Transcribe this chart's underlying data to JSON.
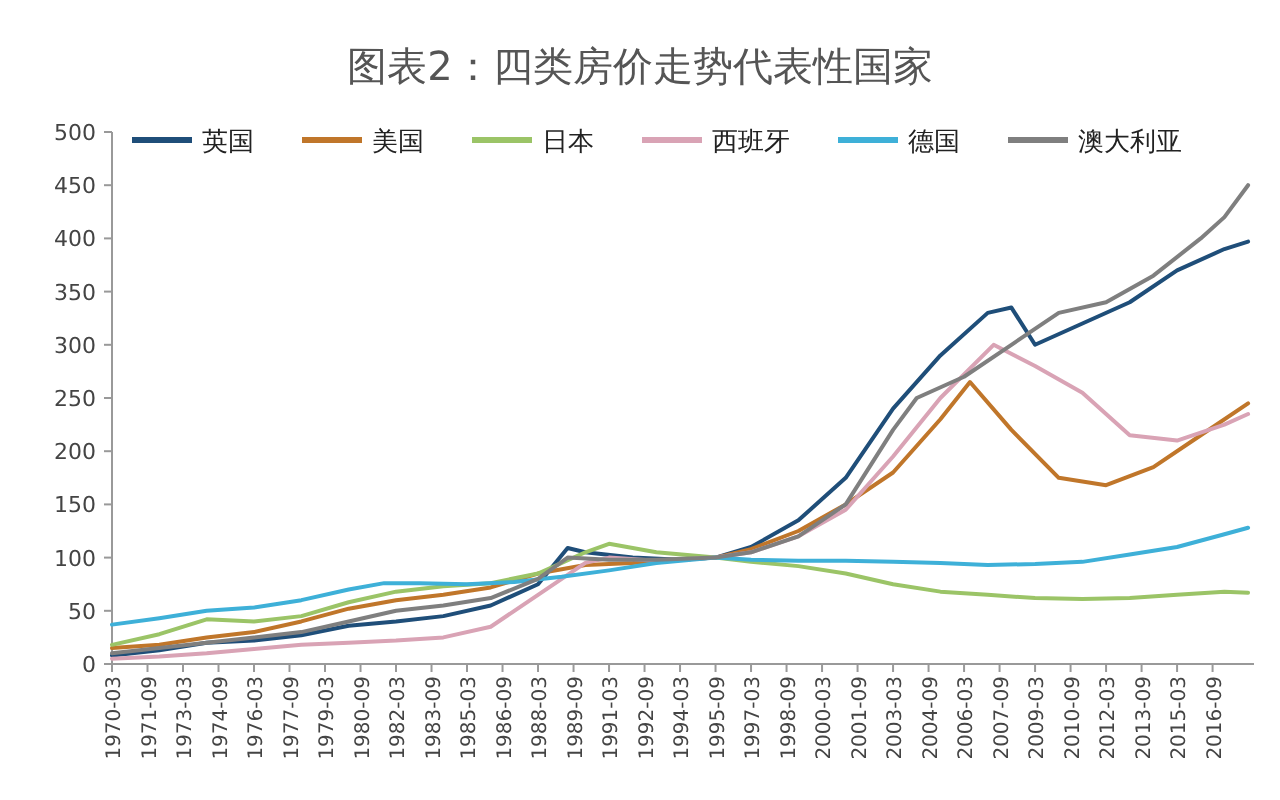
{
  "chart_data": {
    "type": "line",
    "title": "图表2：四类房价走势代表性国家",
    "xlim": [
      "1970-03",
      "2018-06"
    ],
    "xticks": [
      "1970-03",
      "1971-09",
      "1973-03",
      "1974-09",
      "1976-03",
      "1977-09",
      "1979-03",
      "1980-09",
      "1982-03",
      "1983-09",
      "1985-03",
      "1986-09",
      "1988-03",
      "1989-09",
      "1991-03",
      "1992-09",
      "1994-03",
      "1995-09",
      "1997-03",
      "1998-09",
      "2000-03",
      "2001-09",
      "2003-03",
      "2004-09",
      "2006-03",
      "2007-09",
      "2009-03",
      "2010-09",
      "2012-03",
      "2013-09",
      "2015-03",
      "2016-09"
    ],
    "ylim": [
      0,
      500
    ],
    "yticks": [
      0,
      50,
      100,
      150,
      200,
      250,
      300,
      350,
      400,
      450,
      500
    ],
    "grid": false,
    "legend": "top",
    "marker": "none",
    "line_style": "solid",
    "series": [
      {
        "name": "英国",
        "color": "#1f4e79",
        "x": [
          "1970-03",
          "1972-03",
          "1974-03",
          "1976-03",
          "1978-03",
          "1980-03",
          "1982-03",
          "1984-03",
          "1986-03",
          "1988-03",
          "1989-06",
          "1990-03",
          "1992-03",
          "1994-03",
          "1995-09",
          "1997-03",
          "1999-03",
          "2001-03",
          "2003-03",
          "2005-03",
          "2007-03",
          "2008-03",
          "2009-03",
          "2011-03",
          "2013-03",
          "2015-03",
          "2017-03",
          "2018-03"
        ],
        "values": [
          8,
          13,
          20,
          22,
          27,
          36,
          40,
          45,
          55,
          75,
          109,
          105,
          100,
          98,
          100,
          110,
          135,
          175,
          240,
          290,
          330,
          335,
          300,
          320,
          340,
          370,
          390,
          397
        ]
      },
      {
        "name": "美国",
        "color": "#c0762a",
        "x": [
          "1970-03",
          "1972-03",
          "1974-03",
          "1976-03",
          "1978-03",
          "1980-03",
          "1982-03",
          "1984-03",
          "1986-03",
          "1988-03",
          "1990-03",
          "1992-03",
          "1994-03",
          "1995-09",
          "1997-03",
          "1999-03",
          "2001-03",
          "2003-03",
          "2005-03",
          "2006-06",
          "2008-03",
          "2010-03",
          "2012-03",
          "2014-03",
          "2016-03",
          "2018-03"
        ],
        "values": [
          15,
          18,
          25,
          30,
          40,
          52,
          60,
          65,
          72,
          85,
          93,
          95,
          98,
          100,
          108,
          125,
          150,
          180,
          230,
          265,
          220,
          175,
          168,
          185,
          215,
          245
        ]
      },
      {
        "name": "日本",
        "color": "#9bc467",
        "x": [
          "1970-03",
          "1972-03",
          "1974-03",
          "1976-03",
          "1978-03",
          "1980-03",
          "1982-03",
          "1984-03",
          "1986-03",
          "1988-03",
          "1990-03",
          "1991-03",
          "1993-03",
          "1995-09",
          "1997-03",
          "1999-03",
          "2001-03",
          "2003-03",
          "2005-03",
          "2007-03",
          "2009-03",
          "2011-03",
          "2013-03",
          "2015-03",
          "2017-03",
          "2018-03"
        ],
        "values": [
          18,
          28,
          42,
          40,
          45,
          58,
          68,
          73,
          76,
          85,
          105,
          113,
          105,
          100,
          96,
          92,
          85,
          75,
          68,
          65,
          62,
          61,
          62,
          65,
          68,
          67
        ]
      },
      {
        "name": "西班牙",
        "color": "#d9a3b5",
        "x": [
          "1970-03",
          "1972-03",
          "1974-03",
          "1976-03",
          "1978-03",
          "1980-03",
          "1982-03",
          "1984-03",
          "1986-03",
          "1988-03",
          "1990-03",
          "1991-03",
          "1993-03",
          "1995-09",
          "1997-03",
          "1999-03",
          "2001-03",
          "2003-03",
          "2005-03",
          "2007-06",
          "2009-03",
          "2011-03",
          "2013-03",
          "2015-03",
          "2017-03",
          "2018-03"
        ],
        "values": [
          5,
          7,
          10,
          14,
          18,
          20,
          22,
          25,
          35,
          65,
          95,
          100,
          97,
          100,
          105,
          120,
          145,
          195,
          250,
          300,
          280,
          255,
          215,
          210,
          225,
          235
        ]
      },
      {
        "name": "德国",
        "color": "#3eb0d8",
        "x": [
          "1970-03",
          "1972-03",
          "1974-03",
          "1976-03",
          "1978-03",
          "1980-03",
          "1981-09",
          "1983-03",
          "1985-03",
          "1987-03",
          "1989-03",
          "1991-03",
          "1993-03",
          "1995-09",
          "1997-03",
          "1999-03",
          "2001-03",
          "2003-03",
          "2005-03",
          "2007-03",
          "2009-03",
          "2011-03",
          "2013-03",
          "2015-03",
          "2017-03",
          "2018-03"
        ],
        "values": [
          37,
          43,
          50,
          53,
          60,
          70,
          76,
          76,
          75,
          77,
          82,
          88,
          95,
          100,
          98,
          97,
          97,
          96,
          95,
          93,
          94,
          96,
          103,
          110,
          122,
          128
        ]
      },
      {
        "name": "澳大利亚",
        "color": "#7f7f7f",
        "x": [
          "1970-03",
          "1972-03",
          "1974-03",
          "1976-03",
          "1978-03",
          "1980-03",
          "1982-03",
          "1984-03",
          "1986-03",
          "1988-03",
          "1989-06",
          "1991-03",
          "1993-03",
          "1995-09",
          "1997-03",
          "1999-03",
          "2001-03",
          "2003-03",
          "2004-03",
          "2006-03",
          "2008-03",
          "2010-03",
          "2012-03",
          "2014-03",
          "2016-03",
          "2017-03",
          "2018-03"
        ],
        "values": [
          10,
          15,
          20,
          25,
          30,
          40,
          50,
          55,
          62,
          80,
          100,
          98,
          98,
          100,
          105,
          120,
          150,
          220,
          250,
          270,
          300,
          330,
          340,
          365,
          400,
          420,
          450
        ]
      }
    ]
  }
}
